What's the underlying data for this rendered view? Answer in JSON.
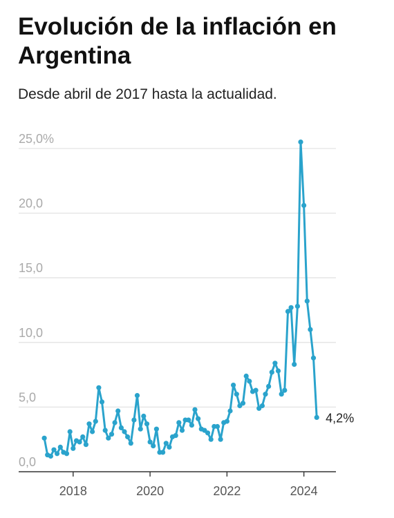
{
  "title": "Evolución de la inflación en Argentina",
  "subtitle": "Desde abril de 2017 hasta la actualidad.",
  "colors": {
    "line": "#2aa3cc",
    "grid": "#e3e3e3",
    "axis": "#333333",
    "ytick": "#aaaaaa",
    "xtick": "#555555",
    "end_label": "#222222"
  },
  "chart_data": {
    "type": "line",
    "title": "Evolución de la inflación en Argentina",
    "subtitle": "Desde abril de 2017 hasta la actualidad.",
    "xlabel": "",
    "ylabel": "",
    "ylim": [
      0,
      25
    ],
    "xlim": [
      "2016-08",
      "2024-11"
    ],
    "grid": true,
    "y_ticks": [
      "0,0",
      "5,0",
      "10,0",
      "15,0",
      "20,0",
      "25,0%"
    ],
    "x_ticks": [
      "2018",
      "2020",
      "2022",
      "2024"
    ],
    "end_label": "4,2%",
    "series": [
      {
        "x": [
          "2017-04",
          "2017-05",
          "2017-06",
          "2017-07",
          "2017-08",
          "2017-09",
          "2017-10",
          "2017-11",
          "2017-12",
          "2018-01",
          "2018-02",
          "2018-03",
          "2018-04",
          "2018-05",
          "2018-06",
          "2018-07",
          "2018-08",
          "2018-09",
          "2018-10",
          "2018-11",
          "2018-12",
          "2019-01",
          "2019-02",
          "2019-03",
          "2019-04",
          "2019-05",
          "2019-06",
          "2019-07",
          "2019-08",
          "2019-09",
          "2019-10",
          "2019-11",
          "2019-12",
          "2020-01",
          "2020-02",
          "2020-03",
          "2020-04",
          "2020-05",
          "2020-06",
          "2020-07",
          "2020-08",
          "2020-09",
          "2020-10",
          "2020-11",
          "2020-12",
          "2021-01",
          "2021-02",
          "2021-03",
          "2021-04",
          "2021-05",
          "2021-06",
          "2021-07",
          "2021-08",
          "2021-09",
          "2021-10",
          "2021-11",
          "2021-12",
          "2022-01",
          "2022-02",
          "2022-03",
          "2022-04",
          "2022-05",
          "2022-06",
          "2022-07",
          "2022-08",
          "2022-09",
          "2022-10",
          "2022-11",
          "2022-12",
          "2023-01",
          "2023-02",
          "2023-03",
          "2023-04",
          "2023-05",
          "2023-06",
          "2023-07",
          "2023-08",
          "2023-09",
          "2023-10",
          "2023-11",
          "2023-12",
          "2024-01",
          "2024-02",
          "2024-03",
          "2024-04",
          "2024-05"
        ],
        "values": [
          2.6,
          1.3,
          1.2,
          1.7,
          1.4,
          1.9,
          1.5,
          1.4,
          3.1,
          1.8,
          2.4,
          2.3,
          2.7,
          2.1,
          3.7,
          3.1,
          3.9,
          6.5,
          5.4,
          3.2,
          2.6,
          2.9,
          3.8,
          4.7,
          3.4,
          3.1,
          2.7,
          2.2,
          4.0,
          5.9,
          3.3,
          4.3,
          3.7,
          2.3,
          2.0,
          3.3,
          1.5,
          1.5,
          2.2,
          1.9,
          2.7,
          2.8,
          3.8,
          3.2,
          4.0,
          4.0,
          3.6,
          4.8,
          4.1,
          3.3,
          3.2,
          3.0,
          2.5,
          3.5,
          3.5,
          2.5,
          3.8,
          3.9,
          4.7,
          6.7,
          6.0,
          5.1,
          5.3,
          7.4,
          7.0,
          6.2,
          6.3,
          4.9,
          5.1,
          6.0,
          6.6,
          7.7,
          8.4,
          7.8,
          6.0,
          6.3,
          12.4,
          12.7,
          8.3,
          12.8,
          25.5,
          20.6,
          13.2,
          11.0,
          8.8,
          4.2
        ]
      }
    ]
  }
}
